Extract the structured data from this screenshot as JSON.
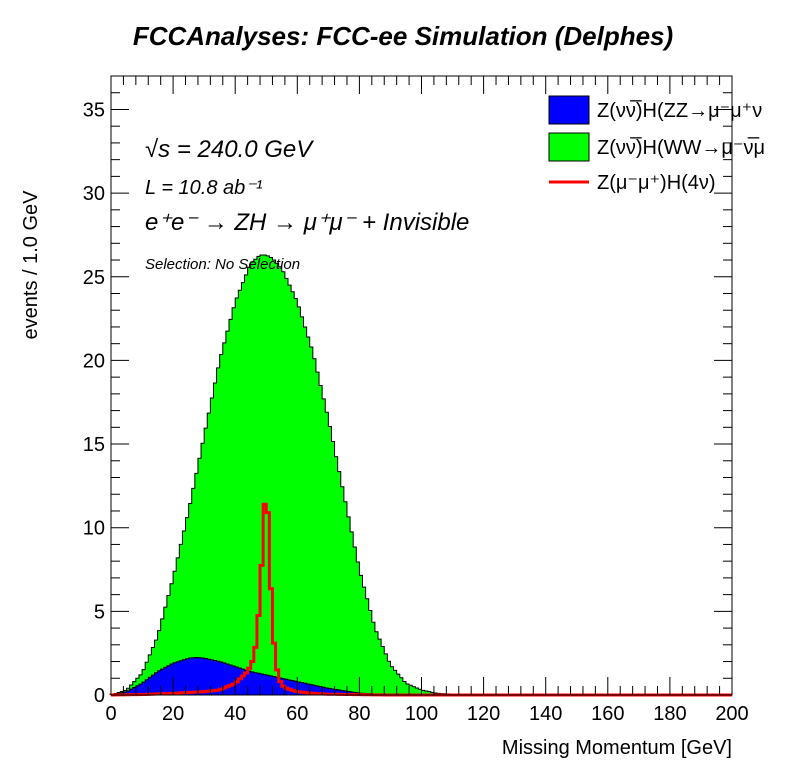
{
  "chart_data": {
    "type": "area",
    "title": "FCCAnalyses: FCC-ee Simulation (Delphes)",
    "xlabel": "Missing Momentum [GeV]",
    "ylabel": "events / 1.0 GeV",
    "xlim": [
      0,
      200
    ],
    "ylim": [
      0,
      37
    ],
    "x_ticks": [
      0,
      20,
      40,
      60,
      80,
      100,
      120,
      140,
      160,
      180,
      200
    ],
    "y_ticks": [
      0,
      5,
      10,
      15,
      20,
      25,
      30,
      35
    ],
    "grid": false,
    "legend_position": "top-right",
    "annotations": {
      "sqrt_s": "√s = 240.0 GeV",
      "lumi": "L = 10.8 ab⁻¹",
      "process": "e⁺e⁻ → ZH → μ⁺μ⁻ + Invisible",
      "selection": "Selection: No Selection"
    },
    "series": [
      {
        "name": "Z(νν̅)H(WW→μ⁻ν̅μ",
        "style": "filled",
        "color": "#00ff00",
        "x": [
          0,
          5,
          10,
          15,
          20,
          25,
          30,
          35,
          40,
          45,
          48,
          50,
          52,
          55,
          60,
          65,
          70,
          75,
          80,
          85,
          90,
          95,
          100,
          105,
          110,
          115,
          200
        ],
        "values": [
          0,
          0.3,
          1.3,
          3.5,
          7,
          11,
          15.5,
          20,
          23.5,
          25.8,
          26.3,
          26.3,
          26.1,
          25.5,
          23.5,
          20.5,
          16.5,
          12,
          7.5,
          4,
          1.8,
          0.7,
          0.3,
          0.1,
          0.05,
          0,
          0
        ]
      },
      {
        "name": "Z(νν̅)H(ZZ→μ⁻μ⁺ν",
        "style": "filled",
        "color": "#0000ff",
        "x": [
          0,
          5,
          10,
          15,
          20,
          25,
          28,
          30,
          35,
          40,
          45,
          50,
          55,
          60,
          65,
          70,
          75,
          80,
          85,
          90,
          100,
          200
        ],
        "values": [
          0,
          0.2,
          0.7,
          1.4,
          1.9,
          2.2,
          2.25,
          2.2,
          2.0,
          1.7,
          1.4,
          1.2,
          1.0,
          0.8,
          0.6,
          0.4,
          0.25,
          0.12,
          0.05,
          0.02,
          0,
          0
        ]
      },
      {
        "name": "Z(μ⁻μ⁺)H(4ν)",
        "style": "line",
        "color": "#ff0000",
        "x": [
          0,
          10,
          20,
          30,
          35,
          40,
          44,
          46,
          47,
          48,
          49,
          50,
          51,
          52,
          53,
          54,
          55,
          56,
          58,
          60,
          65,
          70,
          80,
          90,
          100,
          200
        ],
        "values": [
          0,
          0.03,
          0.1,
          0.2,
          0.3,
          0.7,
          1.4,
          2.2,
          3.5,
          6.0,
          9.5,
          13.3,
          8.5,
          4.2,
          2.0,
          1.0,
          0.6,
          0.45,
          0.3,
          0.2,
          0.1,
          0.05,
          0.02,
          0,
          0,
          0
        ]
      }
    ]
  }
}
